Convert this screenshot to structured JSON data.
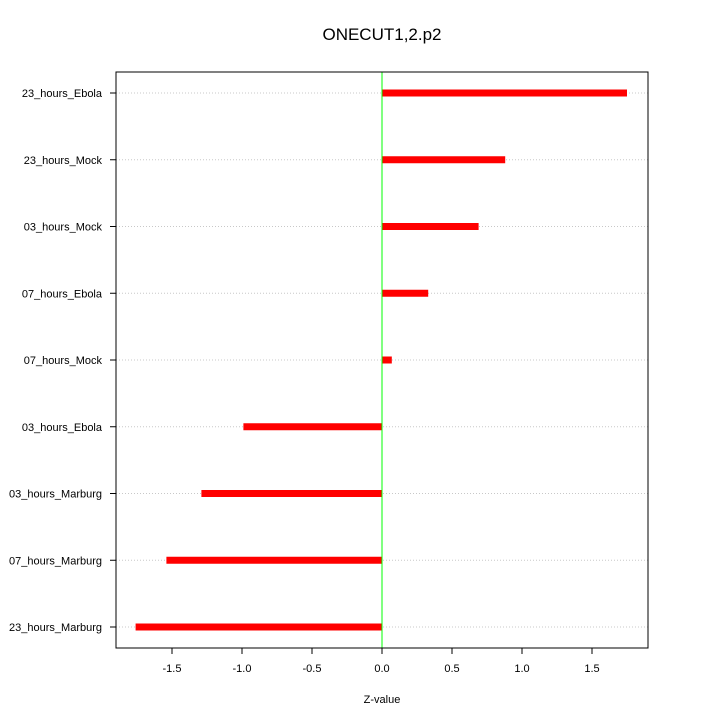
{
  "chart_data": {
    "type": "bar",
    "orientation": "horizontal",
    "title": "ONECUT1,2.p2",
    "xlabel": "Z-value",
    "ylabel": "",
    "categories": [
      "23_hours_Ebola",
      "23_hours_Mock",
      "03_hours_Mock",
      "07_hours_Ebola",
      "07_hours_Mock",
      "03_hours_Ebola",
      "03_hours_Marburg",
      "07_hours_Marburg",
      "23_hours_Marburg"
    ],
    "values": [
      1.75,
      0.88,
      0.69,
      0.33,
      0.07,
      -0.99,
      -1.29,
      -1.54,
      -1.76
    ],
    "xlim": [
      -1.9,
      1.9
    ],
    "xticks": [
      -1.5,
      -1.0,
      -0.5,
      0.0,
      0.5,
      1.0,
      1.5
    ],
    "xtick_labels": [
      "-1.5",
      "-1.0",
      "-0.5",
      "0.0",
      "0.5",
      "1.0",
      "1.5"
    ],
    "reference_line": 0,
    "bar_color": "#ff0000",
    "reference_line_color": "#00ff00",
    "grid": "horizontal dotted",
    "legend": "none"
  }
}
